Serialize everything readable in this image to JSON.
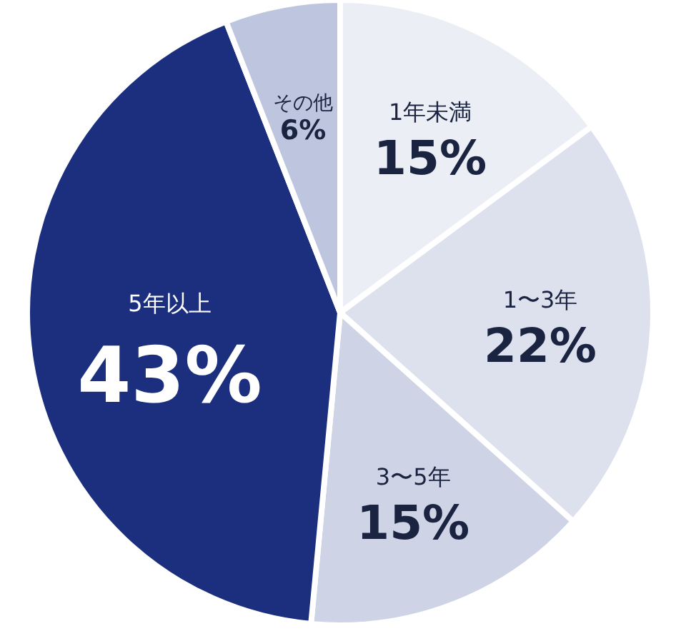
{
  "chart_data": {
    "type": "pie",
    "categories": [
      "1年未満",
      "1〜3年",
      "3〜5年",
      "5年以上",
      "その他"
    ],
    "values": [
      15,
      22,
      15,
      43,
      6
    ],
    "value_labels": [
      "15%",
      "22%",
      "15%",
      "43%",
      "6%"
    ],
    "colors": [
      "#eceef5",
      "#dde1ee",
      "#ced3e6",
      "#1b2f7e",
      "#bec5de"
    ],
    "legend": false
  }
}
